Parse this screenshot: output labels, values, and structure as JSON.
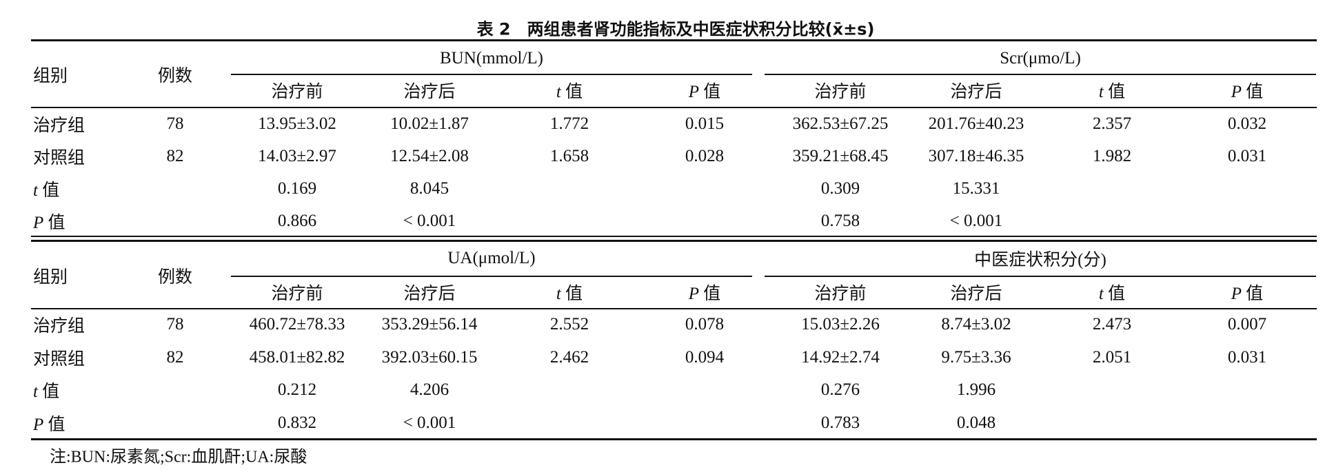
{
  "title": "表 2　两组患者肾功能指标及中医症状积分比较(x̄±s)",
  "column_headers": [
    "组别",
    "例数"
  ],
  "blocks": [
    {
      "groups": [
        "BUN(mmol/L)",
        "Scr(μmo/L)"
      ],
      "subheaders": [
        "治疗前",
        "治疗后",
        "t 值",
        "P 值",
        "治疗前",
        "治疗后",
        "t 值",
        "P 值"
      ],
      "rows": [
        [
          "治疗组",
          "78",
          "13.95±3.02",
          "10.02±1.87",
          "1.772",
          "0.015",
          "362.53±67.25",
          "201.76±40.23",
          "2.357",
          "0.032"
        ],
        [
          "对照组",
          "82",
          "14.03±2.97",
          "12.54±2.08",
          "1.658",
          "0.028",
          "359.21±68.45",
          "307.18±46.35",
          "1.982",
          "0.031"
        ],
        [
          "t 值",
          null,
          "0.169",
          "8.045",
          null,
          null,
          "0.309",
          "15.331",
          null,
          null
        ],
        [
          "P 值",
          null,
          "0.866",
          "< 0.001",
          null,
          null,
          "0.758",
          "< 0.001",
          null,
          null
        ]
      ]
    },
    {
      "groups": [
        "UA(μmol/L)",
        "中医症状积分(分)"
      ],
      "subheaders": [
        "治疗前",
        "治疗后",
        "t 值",
        "P 值",
        "治疗前",
        "治疗后",
        "t 值",
        "P 值"
      ],
      "rows": [
        [
          "治疗组",
          "78",
          "460.72±78.33",
          "353.29±56.14",
          "2.552",
          "0.078",
          "15.03±2.26",
          "8.74±3.02",
          "2.473",
          "0.007"
        ],
        [
          "对照组",
          "82",
          "458.01±82.82",
          "392.03±60.15",
          "2.462",
          "0.094",
          "14.92±2.74",
          "9.75±3.36",
          "2.051",
          "0.031"
        ],
        [
          "t 值",
          null,
          "0.212",
          "4.206",
          null,
          null,
          "0.276",
          "1.996",
          null,
          null
        ],
        [
          "P 值",
          null,
          "0.832",
          "< 0.001",
          null,
          null,
          "0.783",
          "0.048",
          null,
          null
        ]
      ]
    }
  ],
  "note": "注:BUN:尿素氮;Scr:血肌酐;UA:尿酸"
}
